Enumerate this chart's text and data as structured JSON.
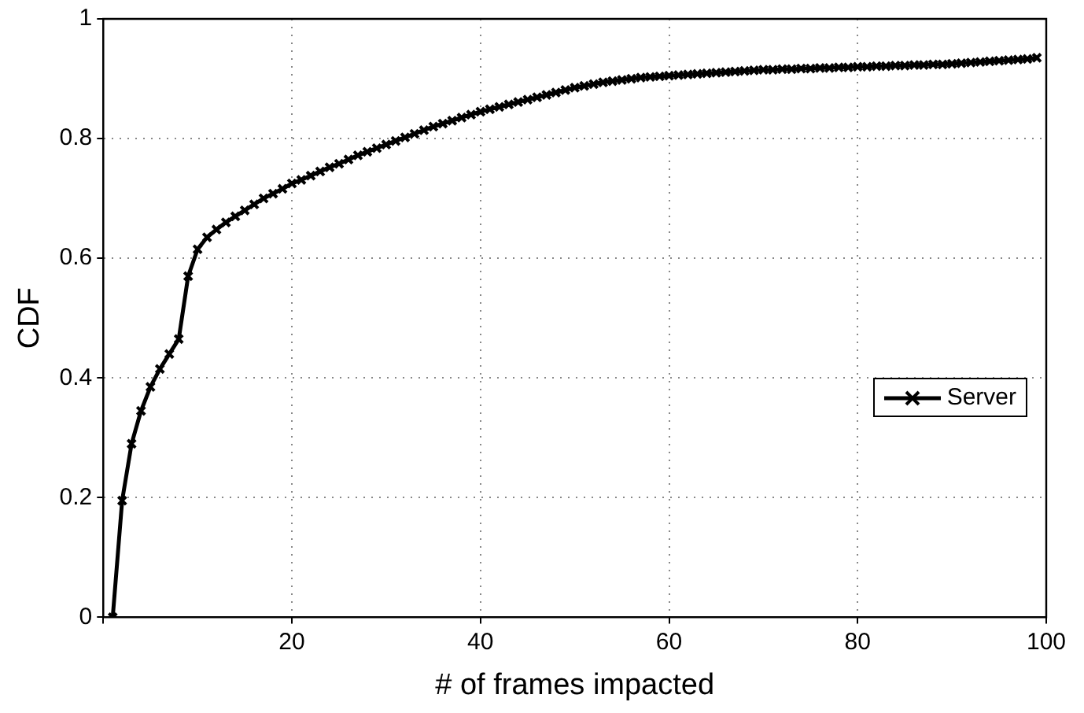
{
  "chart_data": {
    "type": "line",
    "xlabel": "# of frames impacted",
    "ylabel": "CDF",
    "x": [
      1,
      2,
      3,
      4,
      5,
      6,
      7,
      8,
      9,
      10,
      11,
      12,
      13,
      14,
      15,
      16,
      17,
      18,
      19,
      20,
      21,
      22,
      23,
      24,
      25,
      26,
      27,
      28,
      29,
      30,
      31,
      32,
      33,
      34,
      35,
      36,
      37,
      38,
      39,
      40,
      41,
      42,
      43,
      44,
      45,
      46,
      47,
      48,
      49,
      50,
      51,
      52,
      53,
      54,
      55,
      56,
      57,
      58,
      59,
      60,
      61,
      62,
      63,
      64,
      65,
      66,
      67,
      68,
      69,
      70,
      71,
      72,
      73,
      74,
      75,
      76,
      77,
      78,
      79,
      80,
      81,
      82,
      83,
      84,
      85,
      86,
      87,
      88,
      89,
      90,
      91,
      92,
      93,
      94,
      95,
      96,
      97,
      98,
      99
    ],
    "series": [
      {
        "name": "Server",
        "color": "#000000",
        "values": [
          0,
          0.195,
          0.29,
          0.345,
          0.385,
          0.415,
          0.44,
          0.465,
          0.57,
          0.615,
          0.635,
          0.648,
          0.66,
          0.67,
          0.68,
          0.69,
          0.7,
          0.708,
          0.716,
          0.725,
          0.731,
          0.738,
          0.745,
          0.752,
          0.758,
          0.765,
          0.772,
          0.778,
          0.784,
          0.79,
          0.796,
          0.802,
          0.808,
          0.814,
          0.82,
          0.825,
          0.83,
          0.835,
          0.84,
          0.845,
          0.849,
          0.853,
          0.857,
          0.861,
          0.865,
          0.869,
          0.873,
          0.877,
          0.881,
          0.885,
          0.888,
          0.891,
          0.894,
          0.896,
          0.898,
          0.9,
          0.902,
          0.903,
          0.904,
          0.905,
          0.906,
          0.907,
          0.908,
          0.909,
          0.91,
          0.911,
          0.912,
          0.913,
          0.914,
          0.915,
          0.915,
          0.916,
          0.916,
          0.917,
          0.917,
          0.918,
          0.918,
          0.919,
          0.919,
          0.92,
          0.92,
          0.921,
          0.921,
          0.922,
          0.922,
          0.923,
          0.923,
          0.924,
          0.924,
          0.925,
          0.926,
          0.927,
          0.928,
          0.929,
          0.93,
          0.931,
          0.932,
          0.933,
          0.935
        ]
      }
    ],
    "xlim": [
      0,
      100
    ],
    "xticks": [
      {
        "value": 0,
        "label": null
      },
      20,
      40,
      60,
      80,
      100
    ],
    "ylim": [
      0,
      1
    ],
    "yticks": [
      0,
      0.2,
      0.4,
      0.6,
      0.8,
      1
    ],
    "grid": true,
    "legend": "bottom right",
    "marker": "cross",
    "line_style": "solid"
  }
}
